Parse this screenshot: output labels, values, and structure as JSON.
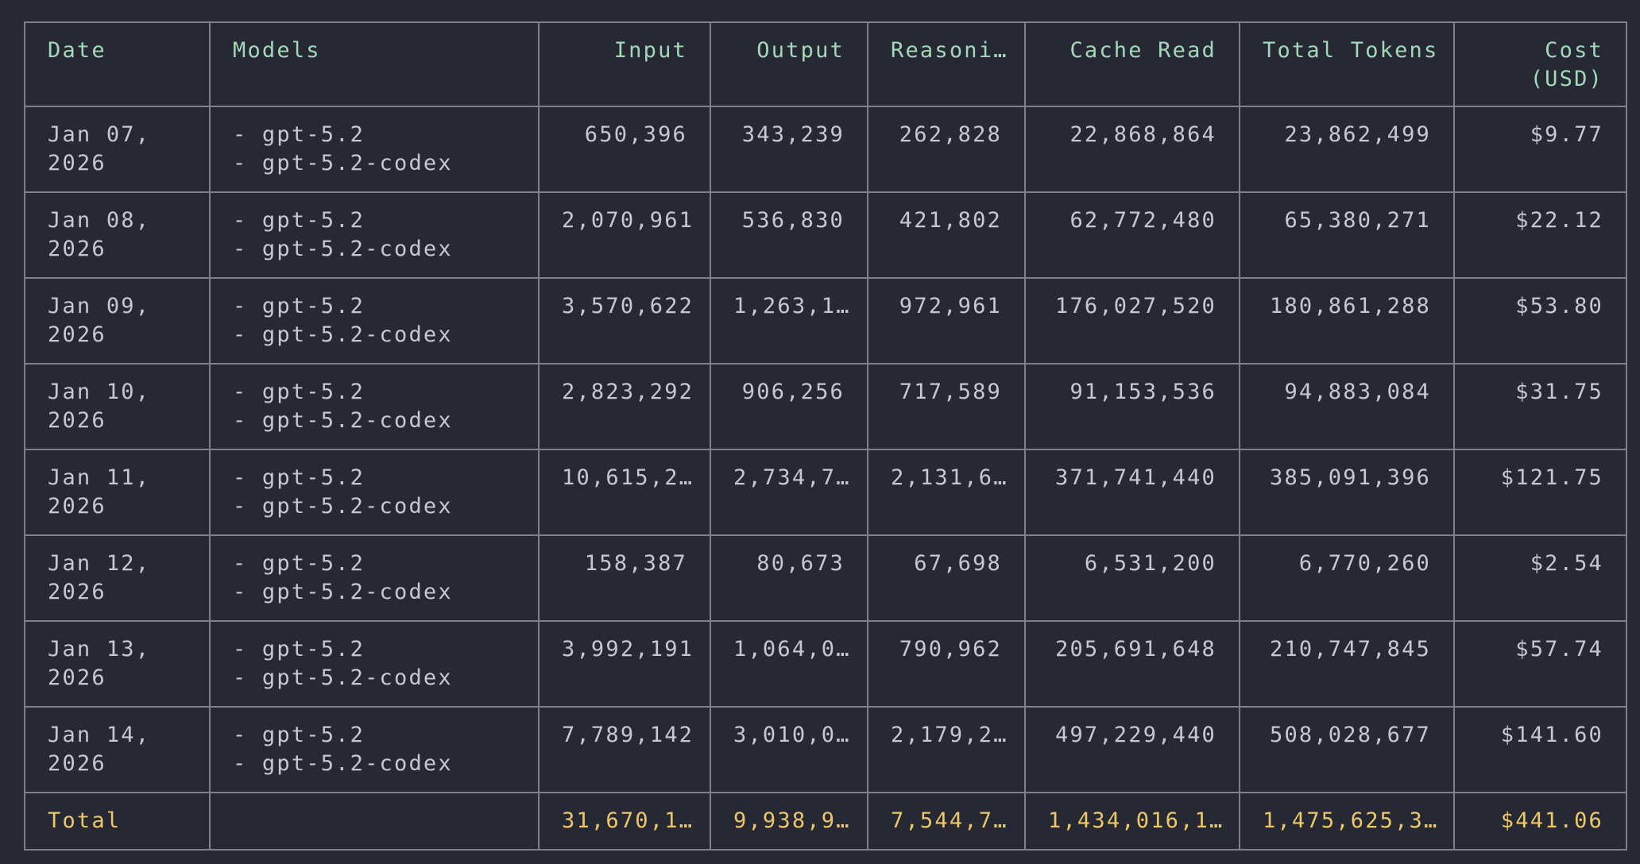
{
  "headers": {
    "date": "Date",
    "models": "Models",
    "input": "Input",
    "output": "Output",
    "reasoning": "Reasoni…",
    "cache_read": "Cache Read",
    "total_tokens": "Total Tokens",
    "cost_line1": "Cost",
    "cost_line2": "(USD)"
  },
  "rows": [
    {
      "date1": "Jan 07,",
      "date2": "2026",
      "model1": "- gpt-5.2",
      "model2": "- gpt-5.2-codex",
      "input": "650,396",
      "output": "343,239",
      "reasoning": "262,828",
      "cache_read": "22,868,864",
      "total": "23,862,499",
      "cost": "$9.77"
    },
    {
      "date1": "Jan 08,",
      "date2": "2026",
      "model1": "- gpt-5.2",
      "model2": "- gpt-5.2-codex",
      "input": "2,070,961",
      "output": "536,830",
      "reasoning": "421,802",
      "cache_read": "62,772,480",
      "total": "65,380,271",
      "cost": "$22.12"
    },
    {
      "date1": "Jan 09,",
      "date2": "2026",
      "model1": "- gpt-5.2",
      "model2": "- gpt-5.2-codex",
      "input": "3,570,622",
      "output": "1,263,1…",
      "reasoning": "972,961",
      "cache_read": "176,027,520",
      "total": "180,861,288",
      "cost": "$53.80"
    },
    {
      "date1": "Jan 10,",
      "date2": "2026",
      "model1": "- gpt-5.2",
      "model2": "- gpt-5.2-codex",
      "input": "2,823,292",
      "output": "906,256",
      "reasoning": "717,589",
      "cache_read": "91,153,536",
      "total": "94,883,084",
      "cost": "$31.75"
    },
    {
      "date1": "Jan 11,",
      "date2": "2026",
      "model1": "- gpt-5.2",
      "model2": "- gpt-5.2-codex",
      "input": "10,615,2…",
      "output": "2,734,7…",
      "reasoning": "2,131,6…",
      "cache_read": "371,741,440",
      "total": "385,091,396",
      "cost": "$121.75"
    },
    {
      "date1": "Jan 12,",
      "date2": "2026",
      "model1": "- gpt-5.2",
      "model2": "- gpt-5.2-codex",
      "input": "158,387",
      "output": "80,673",
      "reasoning": "67,698",
      "cache_read": "6,531,200",
      "total": "6,770,260",
      "cost": "$2.54"
    },
    {
      "date1": "Jan 13,",
      "date2": "2026",
      "model1": "- gpt-5.2",
      "model2": "- gpt-5.2-codex",
      "input": "3,992,191",
      "output": "1,064,0…",
      "reasoning": "790,962",
      "cache_read": "205,691,648",
      "total": "210,747,845",
      "cost": "$57.74"
    },
    {
      "date1": "Jan 14,",
      "date2": "2026",
      "model1": "- gpt-5.2",
      "model2": "- gpt-5.2-codex",
      "input": "7,789,142",
      "output": "3,010,0…",
      "reasoning": "2,179,2…",
      "cache_read": "497,229,440",
      "total": "508,028,677",
      "cost": "$141.60"
    }
  ],
  "totals": {
    "label": "Total",
    "input": "31,670,1…",
    "output": "9,938,9…",
    "reasoning": "7,544,7…",
    "cache_read": "1,434,016,1…",
    "total": "1,475,625,3…",
    "cost": "$441.06"
  },
  "colors": {
    "background": "#262834",
    "header_text": "#a3d9b9",
    "body_text": "#c6c8d0",
    "total_text": "#ecc86a",
    "border": "#7e8086"
  }
}
